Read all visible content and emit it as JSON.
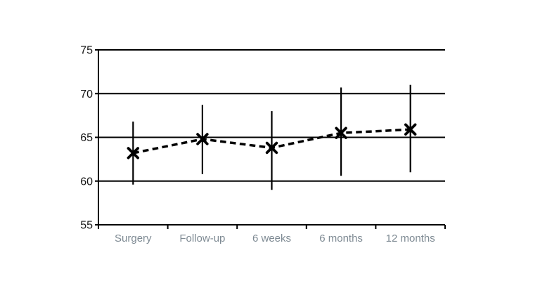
{
  "chart_data": {
    "type": "line",
    "categories": [
      "Surgery",
      "Follow-up",
      "6 weeks",
      "6 months",
      "12 months"
    ],
    "series": [
      {
        "name": "mean-with-error-bars",
        "values": [
          63.2,
          64.8,
          63.8,
          65.5,
          65.9
        ],
        "error_low": [
          59.6,
          60.8,
          59.0,
          60.6,
          61.0
        ],
        "error_high": [
          66.8,
          68.7,
          68.0,
          70.7,
          71.0
        ],
        "marker": "x",
        "line_style": "dashed",
        "color": "#000000"
      }
    ],
    "title": "",
    "xlabel": "",
    "ylabel": "",
    "ylim": [
      55,
      75
    ],
    "yticks": [
      55,
      60,
      65,
      70,
      75
    ],
    "grid": true,
    "legend_position": "none"
  },
  "style": {
    "background": "#ffffff",
    "axis_color": "#000000",
    "grid_color": "#000000",
    "y_label_color": "#141414",
    "x_label_color": "#7e8a93"
  }
}
